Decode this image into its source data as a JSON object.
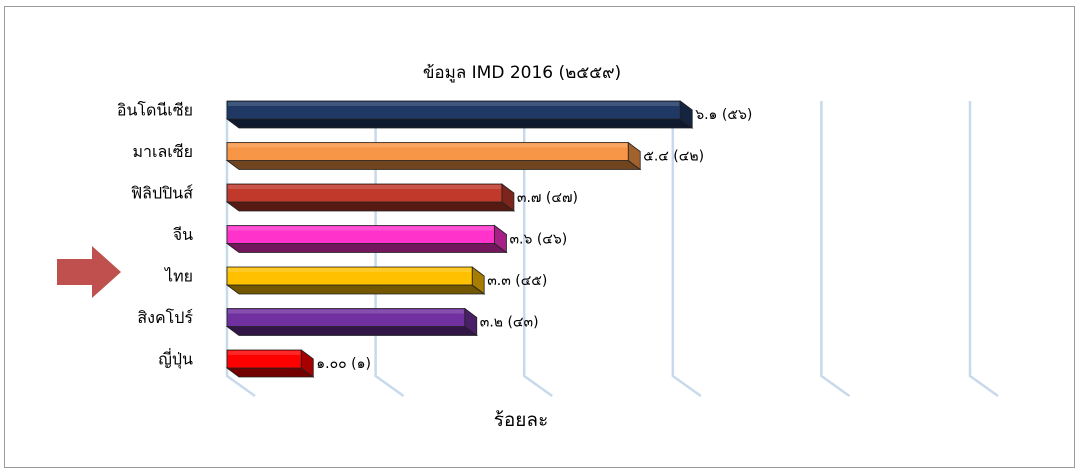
{
  "chart_data": {
    "type": "bar",
    "orientation": "horizontal",
    "style": "3d",
    "title": "ข้อมูล IMD 2016 (๒๕๕๙)",
    "xlabel": "ร้อยละ",
    "ylabel": "",
    "xlim": [
      0,
      10
    ],
    "grid": true,
    "legend": "none",
    "highlight": {
      "category": "ไทย",
      "marker": "arrow",
      "color": "#c0504d"
    },
    "categories": [
      "อินโดนีเซีย",
      "มาเลเซีย",
      "ฟิลิปปินส์",
      "จีน",
      "ไทย",
      "สิงคโปร์",
      "ญี่ปุ่น"
    ],
    "values": [
      6.1,
      5.4,
      3.7,
      3.6,
      3.3,
      3.2,
      1.0
    ],
    "data_labels": [
      "๖.๑ (๕๖)",
      "๕.๔ (๔๒)",
      "๓.๗ (๔๗)",
      "๓.๖ (๔๖)",
      "๓.๓ (๔๕)",
      "๓.๒ (๔๓)",
      "๑.๐๐ (๑)"
    ],
    "colors": [
      "#1f3864",
      "#f79646",
      "#c0392b",
      "#ff33cc",
      "#ffc000",
      "#7030a0",
      "#ff0000"
    ]
  }
}
